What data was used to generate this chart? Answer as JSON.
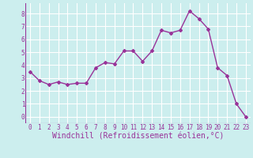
{
  "x": [
    0,
    1,
    2,
    3,
    4,
    5,
    6,
    7,
    8,
    9,
    10,
    11,
    12,
    13,
    14,
    15,
    16,
    17,
    18,
    19,
    20,
    21,
    22,
    23
  ],
  "y": [
    3.5,
    2.8,
    2.5,
    2.7,
    2.5,
    2.6,
    2.6,
    3.8,
    4.2,
    4.1,
    5.1,
    5.1,
    4.3,
    5.1,
    6.7,
    6.5,
    6.7,
    8.2,
    7.6,
    6.8,
    3.8,
    3.2,
    1.0,
    0.0
  ],
  "line_color": "#993399",
  "marker": "D",
  "marker_size": 2.0,
  "bg_color": "#cceeee",
  "grid_color": "#ffffff",
  "xlabel": "Windchill (Refroidissement éolien,°C)",
  "xlabel_color": "#993399",
  "tick_color": "#993399",
  "xlim": [
    -0.5,
    23.5
  ],
  "ylim": [
    -0.5,
    8.8
  ],
  "yticks": [
    0,
    1,
    2,
    3,
    4,
    5,
    6,
    7,
    8
  ],
  "xticks": [
    0,
    1,
    2,
    3,
    4,
    5,
    6,
    7,
    8,
    9,
    10,
    11,
    12,
    13,
    14,
    15,
    16,
    17,
    18,
    19,
    20,
    21,
    22,
    23
  ],
  "tick_fontsize": 5.5,
  "xlabel_fontsize": 7.0,
  "line_width": 1.0
}
